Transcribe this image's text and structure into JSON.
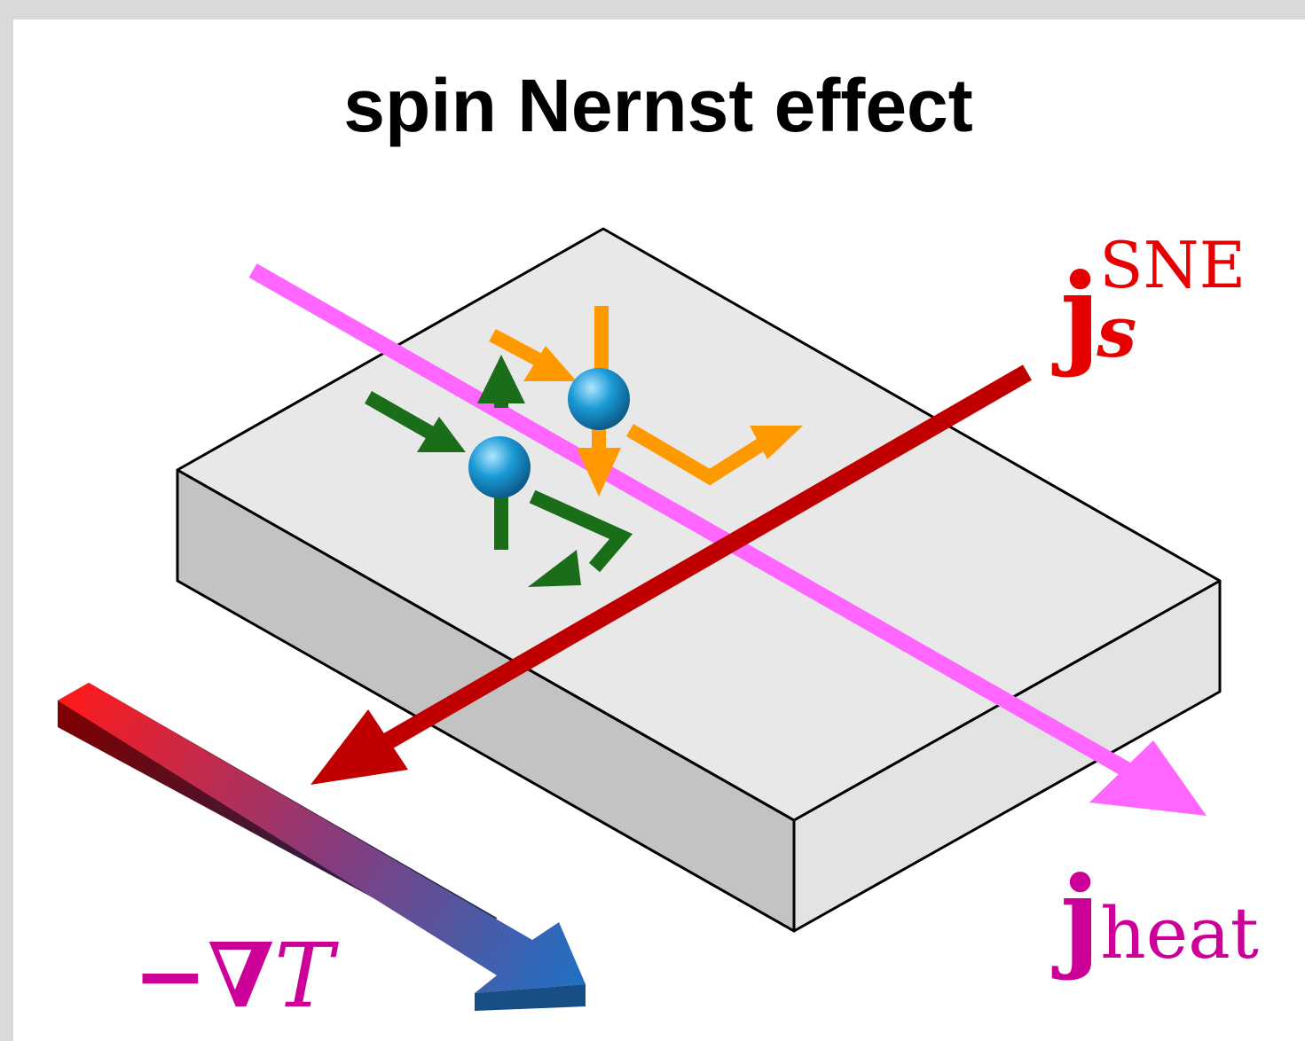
{
  "title": "spin Nernst effect",
  "labels": {
    "spin_current": {
      "main": "j",
      "sub": "s",
      "sup": "SNE"
    },
    "heat_current": {
      "main": "j",
      "sub": "heat"
    },
    "temperature_gradient": {
      "prefix": "−∇",
      "symbol": "T"
    }
  }
}
